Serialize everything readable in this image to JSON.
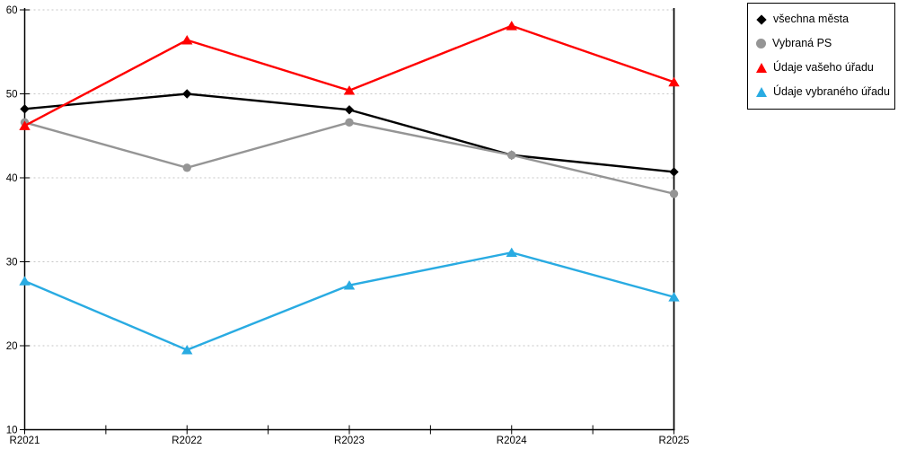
{
  "chart_data": {
    "type": "line",
    "title": "",
    "xlabel": "",
    "ylabel": "",
    "categories": [
      "R2021",
      "R2022",
      "R2023",
      "R2024",
      "R2025"
    ],
    "series": [
      {
        "name": "všechna města",
        "color": "#000000",
        "marker": "diamond",
        "values": [
          48.2,
          50.0,
          48.1,
          42.7,
          40.7
        ]
      },
      {
        "name": "Vybraná PS",
        "color": "#959595",
        "marker": "circle",
        "values": [
          46.6,
          41.2,
          46.6,
          42.7,
          38.1
        ]
      },
      {
        "name": "Údaje vašeho úřadu",
        "color": "#ff0000",
        "marker": "triangle",
        "values": [
          46.2,
          56.4,
          50.4,
          58.1,
          51.4
        ]
      },
      {
        "name": "Údaje vybraného úřadu",
        "color": "#29abe2",
        "marker": "triangle",
        "values": [
          27.7,
          19.5,
          27.2,
          31.1,
          25.8
        ]
      }
    ],
    "ylim": [
      10,
      60
    ],
    "ytick_step": 10,
    "yticks": [
      10,
      20,
      30,
      40,
      50,
      60
    ],
    "grid": "horizontal-dotted",
    "gridline_color": "#c6c6c6",
    "axis_color": "#000000",
    "legend_position": "top-right"
  }
}
